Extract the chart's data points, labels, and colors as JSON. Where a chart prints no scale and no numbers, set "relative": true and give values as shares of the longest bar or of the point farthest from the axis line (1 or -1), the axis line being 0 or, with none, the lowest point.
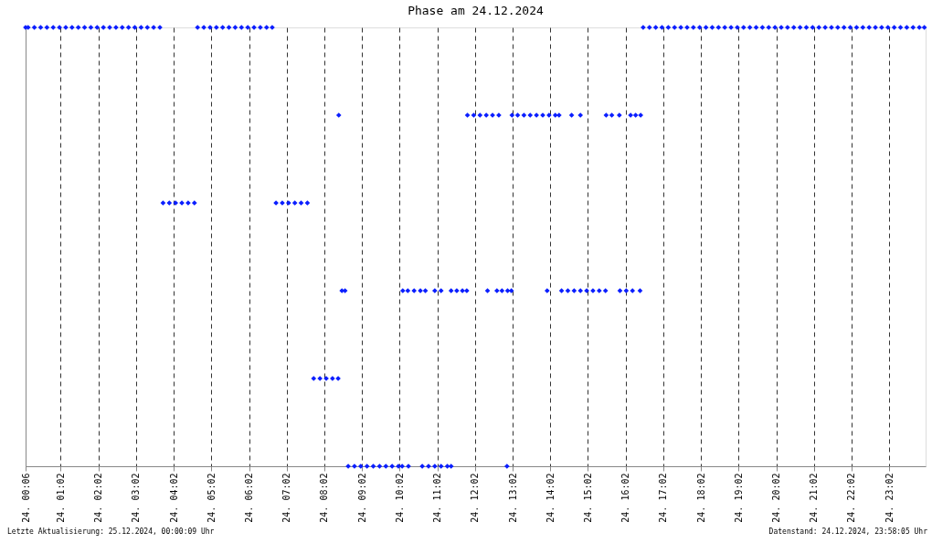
{
  "chart_data": {
    "type": "scatter",
    "title": "Phase am 24.12.2024",
    "relative": true,
    "marker": "diamond",
    "grid": "x",
    "tick_labels": "x",
    "xlim": [
      "2024-12-24T00:06",
      "2024-12-25T00:00"
    ],
    "xticks": [
      {
        "value": "2024-12-24T00:06",
        "label": "24. 00:06"
      },
      {
        "value": "2024-12-24T01:02",
        "label": "24. 01:02"
      },
      {
        "value": "2024-12-24T02:02",
        "label": "24. 02:02"
      },
      {
        "value": "2024-12-24T03:02",
        "label": "24. 03:02"
      },
      {
        "value": "2024-12-24T04:02",
        "label": "24. 04:02"
      },
      {
        "value": "2024-12-24T05:02",
        "label": "24. 05:02"
      },
      {
        "value": "2024-12-24T06:02",
        "label": "24. 06:02"
      },
      {
        "value": "2024-12-24T07:02",
        "label": "24. 07:02"
      },
      {
        "value": "2024-12-24T08:02",
        "label": "24. 08:02"
      },
      {
        "value": "2024-12-24T09:02",
        "label": "24. 09:02"
      },
      {
        "value": "2024-12-24T10:02",
        "label": "24. 10:02"
      },
      {
        "value": "2024-12-24T11:02",
        "label": "24. 11:02"
      },
      {
        "value": "2024-12-24T12:02",
        "label": "24. 12:02"
      },
      {
        "value": "2024-12-24T13:02",
        "label": "24. 13:02"
      },
      {
        "value": "2024-12-24T14:02",
        "label": "24. 14:02"
      },
      {
        "value": "2024-12-24T15:02",
        "label": "24. 15:02"
      },
      {
        "value": "2024-12-24T16:02",
        "label": "24. 16:02"
      },
      {
        "value": "2024-12-24T17:02",
        "label": "24. 17:02"
      },
      {
        "value": "2024-12-24T18:02",
        "label": "24. 18:02"
      },
      {
        "value": "2024-12-24T19:02",
        "label": "24. 19:02"
      },
      {
        "value": "2024-12-24T20:02",
        "label": "24. 20:02"
      },
      {
        "value": "2024-12-24T21:02",
        "label": "24. 21:02"
      },
      {
        "value": "2024-12-24T22:02",
        "label": "24. 22:02"
      },
      {
        "value": "2024-12-24T23:02",
        "label": "24. 23:02"
      }
    ],
    "annotations": [
      "Letzte Aktualisierung: 25.12.2024, 00:00:09 Uhr",
      "Datenstand: 24.12.2024, 23:58:05 Uhr"
    ],
    "series": [
      {
        "color": "#0a1eff",
        "x": [
          "2024-12-24T00:06",
          "2024-12-24T00:10",
          "2024-12-24T00:20",
          "2024-12-24T00:30",
          "2024-12-24T00:40",
          "2024-12-24T00:50",
          "2024-12-24T01:00",
          "2024-12-24T01:10",
          "2024-12-24T01:20",
          "2024-12-24T01:30",
          "2024-12-24T01:40",
          "2024-12-24T01:50",
          "2024-12-24T02:00",
          "2024-12-24T02:10",
          "2024-12-24T02:20",
          "2024-12-24T02:30",
          "2024-12-24T02:40",
          "2024-12-24T02:50",
          "2024-12-24T03:00",
          "2024-12-24T03:10",
          "2024-12-24T03:20",
          "2024-12-24T03:30",
          "2024-12-24T03:40",
          "2024-12-24T03:45",
          "2024-12-24T03:55",
          "2024-12-24T04:05",
          "2024-12-24T04:15",
          "2024-12-24T04:25",
          "2024-12-24T04:35",
          "2024-12-24T04:40",
          "2024-12-24T04:50",
          "2024-12-24T05:00",
          "2024-12-24T05:10",
          "2024-12-24T05:20",
          "2024-12-24T05:30",
          "2024-12-24T05:40",
          "2024-12-24T05:50",
          "2024-12-24T06:00",
          "2024-12-24T06:10",
          "2024-12-24T06:20",
          "2024-12-24T06:30",
          "2024-12-24T06:39",
          "2024-12-24T06:45",
          "2024-12-24T06:55",
          "2024-12-24T07:05",
          "2024-12-24T07:15",
          "2024-12-24T07:25",
          "2024-12-24T07:35",
          "2024-12-24T07:45",
          "2024-12-24T07:55",
          "2024-12-24T08:05",
          "2024-12-24T08:15",
          "2024-12-24T08:24",
          "2024-12-24T08:25",
          "2024-12-24T08:30",
          "2024-12-24T08:35",
          "2024-12-24T08:40",
          "2024-12-24T08:50",
          "2024-12-24T09:00",
          "2024-12-24T09:10",
          "2024-12-24T09:20",
          "2024-12-24T09:30",
          "2024-12-24T09:40",
          "2024-12-24T09:50",
          "2024-12-24T10:00",
          "2024-12-24T10:06",
          "2024-12-24T10:16",
          "2024-12-24T10:07",
          "2024-12-24T10:15",
          "2024-12-24T10:25",
          "2024-12-24T10:35",
          "2024-12-24T10:43",
          "2024-12-24T10:38",
          "2024-12-24T10:48",
          "2024-12-24T10:58",
          "2024-12-24T11:08",
          "2024-12-24T11:18",
          "2024-12-24T11:24",
          "2024-12-24T10:58",
          "2024-12-24T11:08",
          "2024-12-24T11:24",
          "2024-12-24T11:33",
          "2024-12-24T11:42",
          "2024-12-24T11:49",
          "2024-12-24T11:50",
          "2024-12-24T12:00",
          "2024-12-24T12:10",
          "2024-12-24T12:20",
          "2024-12-24T12:30",
          "2024-12-24T12:40",
          "2024-12-24T12:22",
          "2024-12-24T12:53",
          "2024-12-24T12:37",
          "2024-12-24T12:45",
          "2024-12-24T12:54",
          "2024-12-24T13:00",
          "2024-12-24T13:01",
          "2024-12-24T13:10",
          "2024-12-24T13:20",
          "2024-12-24T13:30",
          "2024-12-24T13:40",
          "2024-12-24T13:50",
          "2024-12-24T14:00",
          "2024-12-24T14:10",
          "2024-12-24T14:16",
          "2024-12-24T14:36",
          "2024-12-24T14:50",
          "2024-12-24T13:57",
          "2024-12-24T14:20",
          "2024-12-24T14:30",
          "2024-12-24T14:40",
          "2024-12-24T14:50",
          "2024-12-24T15:00",
          "2024-12-24T15:10",
          "2024-12-24T15:20",
          "2024-12-24T15:30",
          "2024-12-24T15:31",
          "2024-12-24T15:40",
          "2024-12-24T15:52",
          "2024-12-24T15:53",
          "2024-12-24T16:03",
          "2024-12-24T16:13",
          "2024-12-24T16:25",
          "2024-12-24T16:10",
          "2024-12-24T16:18",
          "2024-12-24T16:26",
          "2024-12-24T16:30",
          "2024-12-24T16:40",
          "2024-12-24T16:50",
          "2024-12-24T17:00",
          "2024-12-24T17:10",
          "2024-12-24T17:20",
          "2024-12-24T17:30",
          "2024-12-24T17:40",
          "2024-12-24T17:50",
          "2024-12-24T18:00",
          "2024-12-24T18:10",
          "2024-12-24T18:20",
          "2024-12-24T18:30",
          "2024-12-24T18:40",
          "2024-12-24T18:50",
          "2024-12-24T19:00",
          "2024-12-24T19:10",
          "2024-12-24T19:20",
          "2024-12-24T19:30",
          "2024-12-24T19:40",
          "2024-12-24T19:50",
          "2024-12-24T20:00",
          "2024-12-24T20:10",
          "2024-12-24T20:20",
          "2024-12-24T20:30",
          "2024-12-24T20:40",
          "2024-12-24T20:50",
          "2024-12-24T21:00",
          "2024-12-24T21:10",
          "2024-12-24T21:20",
          "2024-12-24T21:30",
          "2024-12-24T21:40",
          "2024-12-24T21:50",
          "2024-12-24T22:00",
          "2024-12-24T22:10",
          "2024-12-24T22:20",
          "2024-12-24T22:30",
          "2024-12-24T22:40",
          "2024-12-24T22:50",
          "2024-12-24T23:00",
          "2024-12-24T23:10",
          "2024-12-24T23:20",
          "2024-12-24T23:30",
          "2024-12-24T23:40",
          "2024-12-24T23:50",
          "2024-12-24T23:58"
        ],
        "values": [
          1,
          1,
          1,
          1,
          1,
          1,
          1,
          1,
          1,
          1,
          1,
          1,
          1,
          1,
          1,
          1,
          1,
          1,
          1,
          1,
          1,
          1,
          1,
          0.6,
          0.6,
          0.6,
          0.6,
          0.6,
          0.6,
          1,
          1,
          1,
          1,
          1,
          1,
          1,
          1,
          1,
          1,
          1,
          1,
          1,
          0.6,
          0.6,
          0.6,
          0.6,
          0.6,
          0.6,
          0.2,
          0.2,
          0.2,
          0.2,
          0.2,
          0.8,
          0.4,
          0.4,
          0,
          0,
          0,
          0,
          0,
          0,
          0,
          0,
          0,
          0,
          0,
          0.4,
          0.4,
          0.4,
          0.4,
          0.4,
          0,
          0,
          0,
          0,
          0,
          0,
          0.4,
          0.4,
          0.4,
          0.4,
          0.4,
          0.4,
          0.8,
          0.8,
          0.8,
          0.8,
          0.8,
          0.8,
          0.4,
          0,
          0.4,
          0.4,
          0.4,
          0.4,
          0.8,
          0.8,
          0.8,
          0.8,
          0.8,
          0.8,
          0.8,
          0.8,
          0.8,
          0.8,
          0.8,
          0.4,
          0.4,
          0.4,
          0.4,
          0.4,
          0.4,
          0.4,
          0.4,
          0.4,
          0.8,
          0.8,
          0.8,
          0.4,
          0.4,
          0.4,
          0.4,
          0.8,
          0.8,
          0.8,
          1,
          1,
          1,
          1,
          1,
          1,
          1,
          1,
          1,
          1,
          1,
          1,
          1,
          1,
          1,
          1,
          1,
          1,
          1,
          1,
          1,
          1,
          1,
          1,
          1,
          1,
          1,
          1,
          1,
          1,
          1,
          1,
          1,
          1,
          1,
          1,
          1,
          1,
          1,
          1,
          1,
          1,
          1,
          1,
          1,
          1
        ]
      }
    ]
  }
}
